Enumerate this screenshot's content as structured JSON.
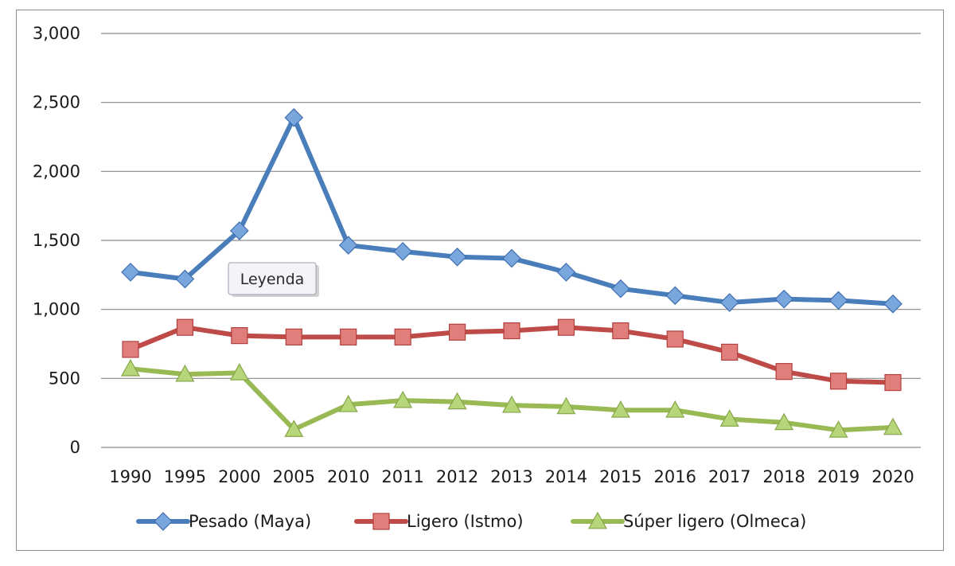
{
  "chart_data": {
    "type": "line",
    "categories": [
      "1990",
      "1995",
      "2000",
      "2005",
      "2010",
      "2011",
      "2012",
      "2013",
      "2014",
      "2015",
      "2016",
      "2017",
      "2018",
      "2019",
      "2020"
    ],
    "ylim": [
      0,
      3000
    ],
    "yticks": [
      0,
      500,
      1000,
      1500,
      2000,
      2500,
      3000
    ],
    "ytick_labels": [
      "0",
      "500",
      "1,000",
      "1,500",
      "2,000",
      "2,500",
      "3,000"
    ],
    "grid": true,
    "legend_position": "bottom",
    "tooltip": "Leyenda",
    "series": [
      {
        "name": "Pesado (Maya)",
        "color": "#4a7ebb",
        "marker": "diamond",
        "values": [
          1270,
          1220,
          1570,
          2390,
          1465,
          1420,
          1380,
          1370,
          1270,
          1150,
          1100,
          1050,
          1075,
          1065,
          1040
        ]
      },
      {
        "name": "Ligero (Istmo)",
        "color": "#be4b48",
        "marker": "square",
        "values": [
          710,
          870,
          810,
          800,
          800,
          800,
          835,
          845,
          870,
          845,
          785,
          690,
          550,
          480,
          470
        ]
      },
      {
        "name": "Súper ligero (Olmeca)",
        "color": "#98b954",
        "marker": "triangle",
        "values": [
          570,
          530,
          540,
          130,
          310,
          340,
          330,
          305,
          295,
          270,
          270,
          205,
          180,
          125,
          145
        ]
      }
    ]
  }
}
